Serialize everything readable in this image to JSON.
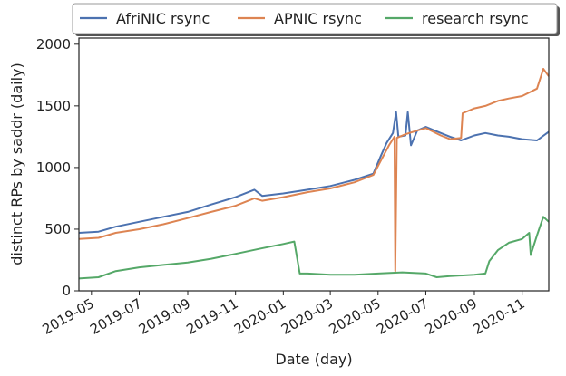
{
  "chart_data": {
    "type": "line",
    "xlabel": "Date (day)",
    "ylabel": "distinct RPs by saddr (daily)",
    "xlim": [
      "2019-04-15",
      "2020-12-05"
    ],
    "ylim": [
      0,
      2050
    ],
    "x_ticks": [
      "2019-05",
      "2019-07",
      "2019-09",
      "2019-11",
      "2020-01",
      "2020-03",
      "2020-05",
      "2020-07",
      "2020-09",
      "2020-11"
    ],
    "x_tick_dates": [
      "2019-05-01",
      "2019-07-01",
      "2019-09-01",
      "2019-11-01",
      "2020-01-01",
      "2020-03-01",
      "2020-05-01",
      "2020-07-01",
      "2020-09-01",
      "2020-11-01"
    ],
    "y_ticks": [
      0,
      500,
      1000,
      1500,
      2000
    ],
    "grid": false,
    "legend_position": "top",
    "series": [
      {
        "name": "AfriNIC rsync",
        "color": "#4c72b0",
        "points": [
          [
            "2019-04-15",
            470
          ],
          [
            "2019-05-10",
            480
          ],
          [
            "2019-06-01",
            520
          ],
          [
            "2019-07-01",
            560
          ],
          [
            "2019-08-01",
            600
          ],
          [
            "2019-09-01",
            640
          ],
          [
            "2019-10-01",
            700
          ],
          [
            "2019-11-01",
            760
          ],
          [
            "2019-11-25",
            820
          ],
          [
            "2019-12-05",
            770
          ],
          [
            "2020-01-01",
            790
          ],
          [
            "2020-02-01",
            820
          ],
          [
            "2020-03-01",
            850
          ],
          [
            "2020-04-01",
            900
          ],
          [
            "2020-04-25",
            950
          ],
          [
            "2020-05-05",
            1100
          ],
          [
            "2020-05-12",
            1200
          ],
          [
            "2020-05-20",
            1280
          ],
          [
            "2020-05-24",
            1450
          ],
          [
            "2020-05-27",
            1250
          ],
          [
            "2020-06-05",
            1260
          ],
          [
            "2020-06-08",
            1450
          ],
          [
            "2020-06-12",
            1180
          ],
          [
            "2020-06-20",
            1300
          ],
          [
            "2020-07-01",
            1330
          ],
          [
            "2020-07-20",
            1280
          ],
          [
            "2020-08-01",
            1250
          ],
          [
            "2020-08-15",
            1220
          ],
          [
            "2020-09-01",
            1260
          ],
          [
            "2020-09-15",
            1280
          ],
          [
            "2020-10-01",
            1260
          ],
          [
            "2020-10-15",
            1250
          ],
          [
            "2020-11-01",
            1230
          ],
          [
            "2020-11-20",
            1220
          ],
          [
            "2020-12-05",
            1290
          ]
        ]
      },
      {
        "name": "APNIC rsync",
        "color": "#dd8452",
        "points": [
          [
            "2019-04-15",
            420
          ],
          [
            "2019-05-10",
            430
          ],
          [
            "2019-06-01",
            470
          ],
          [
            "2019-07-01",
            500
          ],
          [
            "2019-08-01",
            540
          ],
          [
            "2019-09-01",
            590
          ],
          [
            "2019-10-01",
            640
          ],
          [
            "2019-11-01",
            690
          ],
          [
            "2019-11-25",
            750
          ],
          [
            "2019-12-05",
            730
          ],
          [
            "2020-01-01",
            760
          ],
          [
            "2020-02-01",
            800
          ],
          [
            "2020-03-01",
            830
          ],
          [
            "2020-04-01",
            880
          ],
          [
            "2020-04-25",
            940
          ],
          [
            "2020-05-05",
            1060
          ],
          [
            "2020-05-15",
            1180
          ],
          [
            "2020-05-22",
            1250
          ],
          [
            "2020-05-23",
            160
          ],
          [
            "2020-05-25",
            1240
          ],
          [
            "2020-06-05",
            1270
          ],
          [
            "2020-06-20",
            1300
          ],
          [
            "2020-07-01",
            1320
          ],
          [
            "2020-07-20",
            1260
          ],
          [
            "2020-08-01",
            1230
          ],
          [
            "2020-08-15",
            1240
          ],
          [
            "2020-08-17",
            1440
          ],
          [
            "2020-09-01",
            1480
          ],
          [
            "2020-09-15",
            1500
          ],
          [
            "2020-10-01",
            1540
          ],
          [
            "2020-10-15",
            1560
          ],
          [
            "2020-11-01",
            1580
          ],
          [
            "2020-11-20",
            1640
          ],
          [
            "2020-11-28",
            1800
          ],
          [
            "2020-12-05",
            1740
          ]
        ]
      },
      {
        "name": "research rsync",
        "color": "#55a868",
        "points": [
          [
            "2019-04-15",
            100
          ],
          [
            "2019-05-10",
            110
          ],
          [
            "2019-06-01",
            160
          ],
          [
            "2019-07-01",
            190
          ],
          [
            "2019-08-01",
            210
          ],
          [
            "2019-09-01",
            230
          ],
          [
            "2019-10-01",
            260
          ],
          [
            "2019-11-01",
            300
          ],
          [
            "2019-12-01",
            340
          ],
          [
            "2020-01-01",
            380
          ],
          [
            "2020-01-15",
            400
          ],
          [
            "2020-01-22",
            140
          ],
          [
            "2020-02-01",
            140
          ],
          [
            "2020-03-01",
            130
          ],
          [
            "2020-04-01",
            130
          ],
          [
            "2020-05-01",
            140
          ],
          [
            "2020-06-01",
            150
          ],
          [
            "2020-07-01",
            140
          ],
          [
            "2020-07-15",
            110
          ],
          [
            "2020-08-01",
            120
          ],
          [
            "2020-09-01",
            130
          ],
          [
            "2020-09-15",
            140
          ],
          [
            "2020-09-20",
            240
          ],
          [
            "2020-10-01",
            330
          ],
          [
            "2020-10-15",
            390
          ],
          [
            "2020-11-01",
            420
          ],
          [
            "2020-11-10",
            470
          ],
          [
            "2020-11-12",
            290
          ],
          [
            "2020-11-20",
            450
          ],
          [
            "2020-11-28",
            600
          ],
          [
            "2020-12-05",
            560
          ]
        ]
      }
    ]
  }
}
